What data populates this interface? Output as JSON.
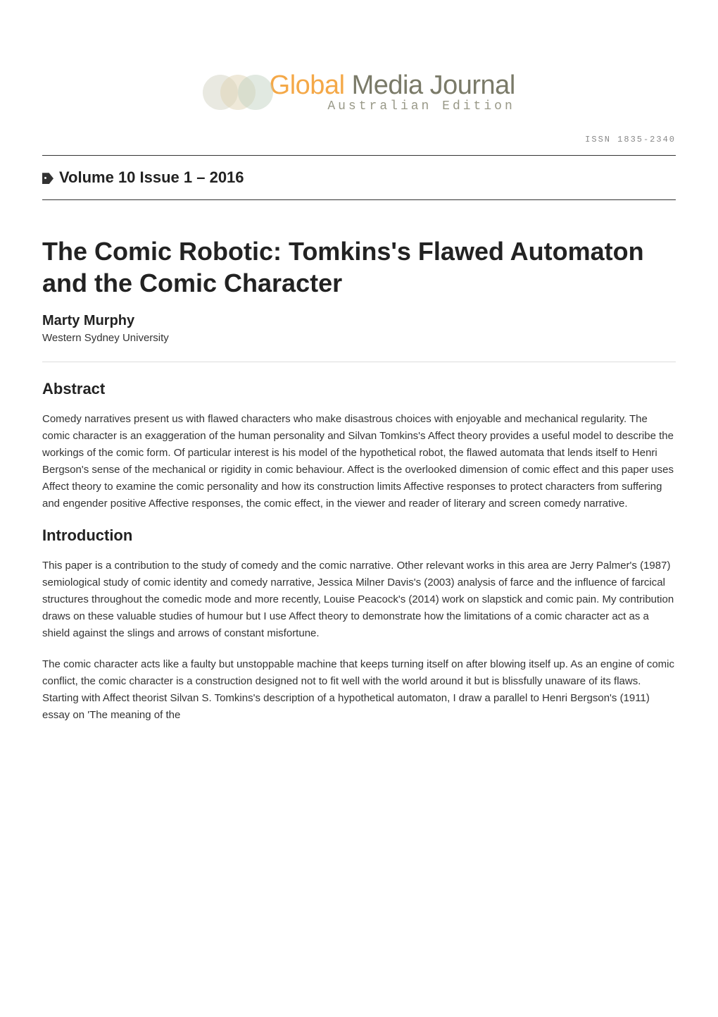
{
  "logo": {
    "main_text_part1": "Global",
    "main_text_part2": " Media Journal",
    "subtitle": "Australian Edition",
    "color_global": "#f4a847",
    "color_media": "#7a7a68",
    "color_subtitle": "#999988"
  },
  "issn": "ISSN 1835-2340",
  "volume": "Volume 10 Issue 1 – 2016",
  "article": {
    "title": "The Comic Robotic: Tomkins's Flawed Automaton and the Comic Character",
    "author": "Marty Murphy",
    "affiliation": "Western Sydney University"
  },
  "sections": {
    "abstract": {
      "heading": "Abstract",
      "body": "Comedy narratives present us with flawed characters who make disastrous choices with enjoyable and mechanical regularity. The comic character is an exaggeration of the human personality and Silvan Tomkins's Affect theory provides a useful model to describe the workings of the comic form. Of particular interest is his model of the hypothetical robot, the flawed automata that lends itself to Henri Bergson's sense of the mechanical or rigidity in comic behaviour. Affect is the overlooked dimension of comic effect and this paper uses Affect theory to examine the comic personality and how its construction limits Affective responses to protect characters from suffering and engender positive Affective responses, the comic effect, in the viewer and reader of literary and screen comedy narrative."
    },
    "introduction": {
      "heading": "Introduction",
      "paragraphs": [
        "This paper is a contribution to the study of comedy and the comic narrative. Other relevant works in this area are Jerry Palmer's (1987) semiological study of comic identity and comedy narrative, Jessica Milner Davis's (2003) analysis of farce and the influence of farcical structures throughout the comedic mode and more recently, Louise Peacock's (2014) work on slapstick and comic pain. My contribution draws on these valuable studies of humour but I use Affect theory to demonstrate how the limitations of a comic character act as a shield against the slings and arrows of constant misfortune.",
        "The comic character acts like a faulty but unstoppable machine that keeps turning itself on after blowing itself up. As an engine of comic conflict, the comic character is a construction designed not to fit well with the world around it but is blissfully unaware of its flaws. Starting with Affect theorist Silvan S. Tomkins's description of a hypothetical automaton, I draw a parallel to Henri Bergson's (1911) essay on 'The meaning of the"
      ]
    }
  },
  "styling": {
    "background_color": "#ffffff",
    "text_color": "#333333",
    "heading_color": "#222222",
    "divider_color": "#333333",
    "light_divider_color": "#dddddd",
    "title_fontsize": 36,
    "heading_fontsize": 22,
    "body_fontsize": 15,
    "author_fontsize": 20,
    "affiliation_fontsize": 15,
    "volume_fontsize": 22,
    "issn_fontsize": 12
  }
}
